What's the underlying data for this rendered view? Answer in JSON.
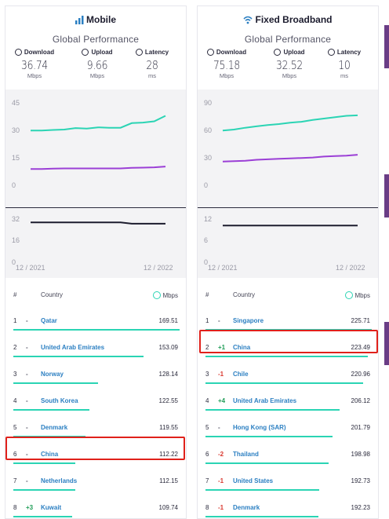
{
  "mobile": {
    "title": "Mobile",
    "gp_title": "Global Performance",
    "metrics": [
      {
        "label": "Download",
        "value": "36.74",
        "unit": "Mbps"
      },
      {
        "label": "Upload",
        "value": "9.66",
        "unit": "Mbps"
      },
      {
        "label": "Latency",
        "value": "28",
        "unit": "ms"
      }
    ],
    "speed_ticks": [
      "45",
      "30",
      "15",
      "0"
    ],
    "latency_ticks": [
      "32",
      "16",
      "0"
    ],
    "x_start": "12 / 2021",
    "x_end": "12 / 2022",
    "table_headers": {
      "rank": "#",
      "country": "Country",
      "unit": "Mbps"
    },
    "rows": [
      {
        "rank": "1",
        "change": "-",
        "country": "Qatar",
        "speed": "169.51"
      },
      {
        "rank": "2",
        "change": "-",
        "country": "United Arab Emirates",
        "speed": "153.09"
      },
      {
        "rank": "3",
        "change": "-",
        "country": "Norway",
        "speed": "128.14"
      },
      {
        "rank": "4",
        "change": "-",
        "country": "South Korea",
        "speed": "122.55"
      },
      {
        "rank": "5",
        "change": "-",
        "country": "Denmark",
        "speed": "119.55"
      },
      {
        "rank": "6",
        "change": "-",
        "country": "China",
        "speed": "112.22"
      },
      {
        "rank": "7",
        "change": "-",
        "country": "Netherlands",
        "speed": "112.15"
      },
      {
        "rank": "8",
        "change": "+3",
        "country": "Kuwait",
        "speed": "109.74"
      }
    ]
  },
  "broadband": {
    "title": "Fixed Broadband",
    "gp_title": "Global Performance",
    "metrics": [
      {
        "label": "Download",
        "value": "75.18",
        "unit": "Mbps"
      },
      {
        "label": "Upload",
        "value": "32.52",
        "unit": "Mbps"
      },
      {
        "label": "Latency",
        "value": "10",
        "unit": "ms"
      }
    ],
    "speed_ticks": [
      "90",
      "60",
      "30",
      "0"
    ],
    "latency_ticks": [
      "12",
      "6",
      "0"
    ],
    "x_start": "12 / 2021",
    "x_end": "12 / 2022",
    "table_headers": {
      "rank": "#",
      "country": "Country",
      "unit": "Mbps"
    },
    "rows": [
      {
        "rank": "1",
        "change": "-",
        "country": "Singapore",
        "speed": "225.71"
      },
      {
        "rank": "2",
        "change": "+1",
        "country": "China",
        "speed": "223.49"
      },
      {
        "rank": "3",
        "change": "-1",
        "country": "Chile",
        "speed": "220.96"
      },
      {
        "rank": "4",
        "change": "+4",
        "country": "United Arab Emirates",
        "speed": "206.12"
      },
      {
        "rank": "5",
        "change": "-",
        "country": "Hong Kong (SAR)",
        "speed": "201.79"
      },
      {
        "rank": "6",
        "change": "-2",
        "country": "Thailand",
        "speed": "198.98"
      },
      {
        "rank": "7",
        "change": "-1",
        "country": "United States",
        "speed": "192.73"
      },
      {
        "rank": "8",
        "change": "-1",
        "country": "Denmark",
        "speed": "192.23"
      }
    ]
  },
  "colors": {
    "download": "#2bd4b4",
    "upload": "#9b3fd6",
    "latency": "#1c1c2e",
    "highlight": "#e0211b"
  },
  "chart_data": [
    {
      "type": "line",
      "x": [
        "12/2021",
        "01/2022",
        "02/2022",
        "03/2022",
        "04/2022",
        "05/2022",
        "06/2022",
        "07/2022",
        "08/2022",
        "09/2022",
        "10/2022",
        "11/2022",
        "12/2022"
      ],
      "ylim": [
        0,
        45
      ],
      "series": [
        {
          "name": "Download",
          "values": [
            29.5,
            29.5,
            29.8,
            30.0,
            30.8,
            30.5,
            31.2,
            31.0,
            31.0,
            33.5,
            33.8,
            34.5,
            37.5
          ]
        },
        {
          "name": "Upload",
          "values": [
            8.5,
            8.5,
            8.7,
            8.8,
            8.8,
            8.8,
            8.8,
            8.8,
            8.8,
            9.1,
            9.2,
            9.4,
            9.8
          ]
        }
      ]
    },
    {
      "type": "line",
      "x": [
        "12/2021",
        "01/2022",
        "02/2022",
        "03/2022",
        "04/2022",
        "05/2022",
        "06/2022",
        "07/2022",
        "08/2022",
        "09/2022",
        "10/2022",
        "11/2022",
        "12/2022"
      ],
      "ylim": [
        0,
        32
      ],
      "series": [
        {
          "name": "Latency",
          "values": [
            29,
            29,
            29,
            29,
            29,
            29,
            29,
            29,
            29,
            28,
            28,
            28,
            28
          ]
        }
      ]
    },
    {
      "type": "line",
      "x": [
        "12/2021",
        "01/2022",
        "02/2022",
        "03/2022",
        "04/2022",
        "05/2022",
        "06/2022",
        "07/2022",
        "08/2022",
        "09/2022",
        "10/2022",
        "11/2022",
        "12/2022"
      ],
      "ylim": [
        0,
        90
      ],
      "series": [
        {
          "name": "Download",
          "values": [
            59,
            60,
            62,
            63.5,
            65,
            66,
            67.5,
            68.5,
            70.5,
            72,
            73.5,
            75,
            75.5
          ]
        },
        {
          "name": "Upload",
          "values": [
            25,
            25.5,
            26,
            27,
            27.5,
            28,
            28.5,
            29,
            29.5,
            30.5,
            31,
            31.5,
            32.5
          ]
        }
      ]
    },
    {
      "type": "line",
      "x": [
        "12/2021",
        "01/2022",
        "02/2022",
        "03/2022",
        "04/2022",
        "05/2022",
        "06/2022",
        "07/2022",
        "08/2022",
        "09/2022",
        "10/2022",
        "11/2022",
        "12/2022"
      ],
      "ylim": [
        0,
        12
      ],
      "series": [
        {
          "name": "Latency",
          "values": [
            10,
            10,
            10,
            10,
            10,
            10,
            10,
            10,
            10,
            10,
            10,
            10,
            10
          ]
        }
      ]
    }
  ]
}
